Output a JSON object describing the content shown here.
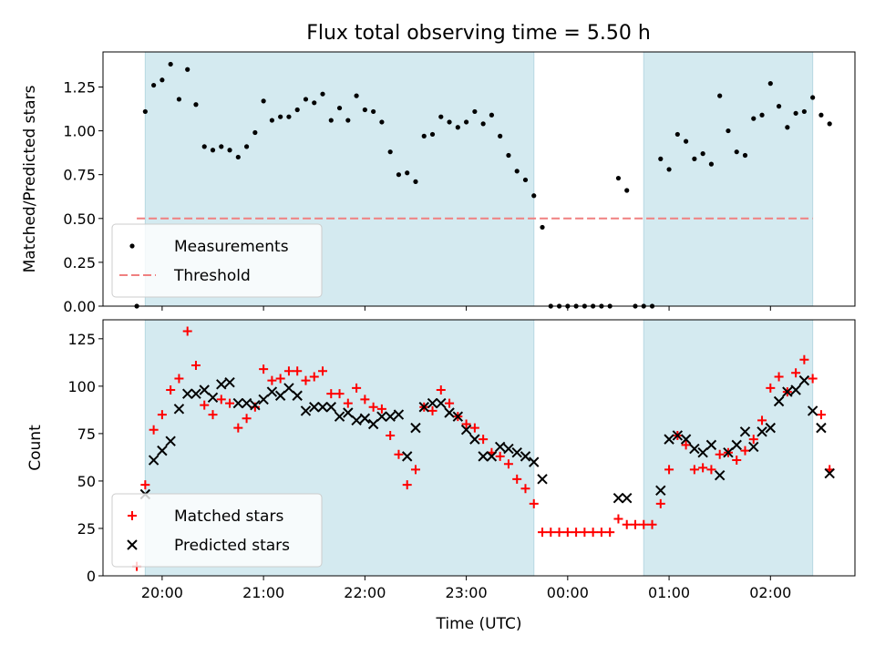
{
  "title": "Flux total observing time = 5.50 h",
  "chart_data": [
    {
      "type": "scatter",
      "ylabel": "Matched/Predicted stars",
      "xlim": [
        "19:25",
        "02:50"
      ],
      "ylim": [
        0,
        1.45
      ],
      "yticks": [
        0.0,
        0.25,
        0.5,
        0.75,
        1.0,
        1.25
      ],
      "ytick_labels": [
        "0.00",
        "0.25",
        "0.50",
        "0.75",
        "1.00",
        "1.25"
      ],
      "shaded_intervals": [
        [
          "19:50",
          "23:40"
        ],
        [
          "00:45",
          "02:25"
        ]
      ],
      "shade_color": "#d4eaf0",
      "legend_position": "lower left",
      "threshold": {
        "name": "Threshold",
        "value": 0.5,
        "x_range": [
          "19:45",
          "02:25"
        ],
        "color": "#f08080",
        "style": "dashed"
      },
      "series": [
        {
          "name": "Measurements",
          "color": "#000000",
          "points": [
            [
              "19:45",
              0.0
            ],
            [
              "19:50",
              1.11
            ],
            [
              "19:55",
              1.26
            ],
            [
              "20:00",
              1.29
            ],
            [
              "20:05",
              1.38
            ],
            [
              "20:10",
              1.18
            ],
            [
              "20:15",
              1.35
            ],
            [
              "20:20",
              1.15
            ],
            [
              "20:25",
              0.91
            ],
            [
              "20:30",
              0.89
            ],
            [
              "20:35",
              0.91
            ],
            [
              "20:40",
              0.89
            ],
            [
              "20:45",
              0.85
            ],
            [
              "20:50",
              0.91
            ],
            [
              "20:55",
              0.99
            ],
            [
              "21:00",
              1.17
            ],
            [
              "21:05",
              1.06
            ],
            [
              "21:10",
              1.08
            ],
            [
              "21:15",
              1.08
            ],
            [
              "21:20",
              1.12
            ],
            [
              "21:25",
              1.18
            ],
            [
              "21:30",
              1.16
            ],
            [
              "21:35",
              1.21
            ],
            [
              "21:40",
              1.06
            ],
            [
              "21:45",
              1.13
            ],
            [
              "21:50",
              1.06
            ],
            [
              "21:55",
              1.2
            ],
            [
              "22:00",
              1.12
            ],
            [
              "22:05",
              1.11
            ],
            [
              "22:10",
              1.05
            ],
            [
              "22:15",
              0.88
            ],
            [
              "22:20",
              0.75
            ],
            [
              "22:25",
              0.76
            ],
            [
              "22:30",
              0.71
            ],
            [
              "22:35",
              0.97
            ],
            [
              "22:40",
              0.98
            ],
            [
              "22:45",
              1.08
            ],
            [
              "22:50",
              1.05
            ],
            [
              "22:55",
              1.02
            ],
            [
              "23:00",
              1.05
            ],
            [
              "23:05",
              1.11
            ],
            [
              "23:10",
              1.04
            ],
            [
              "23:15",
              1.09
            ],
            [
              "23:20",
              0.97
            ],
            [
              "23:25",
              0.86
            ],
            [
              "23:30",
              0.77
            ],
            [
              "23:35",
              0.72
            ],
            [
              "23:40",
              0.63
            ],
            [
              "23:45",
              0.45
            ],
            [
              "23:50",
              0.0
            ],
            [
              "23:55",
              0.0
            ],
            [
              "00:00",
              0.0
            ],
            [
              "00:05",
              0.0
            ],
            [
              "00:10",
              0.0
            ],
            [
              "00:15",
              0.0
            ],
            [
              "00:20",
              0.0
            ],
            [
              "00:25",
              0.0
            ],
            [
              "00:30",
              0.73
            ],
            [
              "00:35",
              0.66
            ],
            [
              "00:40",
              0.0
            ],
            [
              "00:45",
              0.0
            ],
            [
              "00:50",
              0.0
            ],
            [
              "00:55",
              0.84
            ],
            [
              "01:00",
              0.78
            ],
            [
              "01:05",
              0.98
            ],
            [
              "01:10",
              0.94
            ],
            [
              "01:15",
              0.84
            ],
            [
              "01:20",
              0.87
            ],
            [
              "01:25",
              0.81
            ],
            [
              "01:30",
              1.2
            ],
            [
              "01:35",
              1.0
            ],
            [
              "01:40",
              0.88
            ],
            [
              "01:45",
              0.86
            ],
            [
              "01:50",
              1.07
            ],
            [
              "01:55",
              1.09
            ],
            [
              "02:00",
              1.27
            ],
            [
              "02:05",
              1.14
            ],
            [
              "02:10",
              1.02
            ],
            [
              "02:15",
              1.1
            ],
            [
              "02:20",
              1.11
            ],
            [
              "02:25",
              1.19
            ],
            [
              "02:30",
              1.09
            ],
            [
              "02:35",
              1.04
            ]
          ]
        }
      ]
    },
    {
      "type": "scatter",
      "xlabel": "Time (UTC)",
      "ylabel": "Count",
      "xlim": [
        "19:25",
        "02:50"
      ],
      "xticks": [
        "20:00",
        "21:00",
        "22:00",
        "23:00",
        "00:00",
        "01:00",
        "02:00"
      ],
      "xtick_labels": [
        "20:00",
        "21:00",
        "22:00",
        "23:00",
        "00:00",
        "01:00",
        "02:00"
      ],
      "ylim": [
        0,
        135
      ],
      "yticks": [
        0,
        25,
        50,
        75,
        100,
        125
      ],
      "ytick_labels": [
        "0",
        "25",
        "50",
        "75",
        "100",
        "125"
      ],
      "shaded_intervals": [
        [
          "19:50",
          "23:40"
        ],
        [
          "00:45",
          "02:25"
        ]
      ],
      "shade_color": "#d4eaf0",
      "legend_position": "lower left",
      "series": [
        {
          "name": "Matched stars",
          "color": "#ff0000",
          "marker": "plus",
          "points": [
            [
              "19:45",
              5
            ],
            [
              "19:50",
              48
            ],
            [
              "19:55",
              77
            ],
            [
              "20:00",
              85
            ],
            [
              "20:05",
              98
            ],
            [
              "20:10",
              104
            ],
            [
              "20:15",
              129
            ],
            [
              "20:20",
              111
            ],
            [
              "20:25",
              90
            ],
            [
              "20:30",
              85
            ],
            [
              "20:35",
              93
            ],
            [
              "20:40",
              91
            ],
            [
              "20:45",
              78
            ],
            [
              "20:50",
              83
            ],
            [
              "20:55",
              89
            ],
            [
              "21:00",
              109
            ],
            [
              "21:05",
              103
            ],
            [
              "21:10",
              104
            ],
            [
              "21:15",
              108
            ],
            [
              "21:20",
              108
            ],
            [
              "21:25",
              103
            ],
            [
              "21:30",
              105
            ],
            [
              "21:35",
              108
            ],
            [
              "21:40",
              96
            ],
            [
              "21:45",
              96
            ],
            [
              "21:50",
              91
            ],
            [
              "21:55",
              99
            ],
            [
              "22:00",
              93
            ],
            [
              "22:05",
              89
            ],
            [
              "22:10",
              88
            ],
            [
              "22:15",
              74
            ],
            [
              "22:20",
              64
            ],
            [
              "22:25",
              48
            ],
            [
              "22:30",
              56
            ],
            [
              "22:35",
              89
            ],
            [
              "22:40",
              87
            ],
            [
              "22:45",
              98
            ],
            [
              "22:50",
              91
            ],
            [
              "22:55",
              84
            ],
            [
              "23:00",
              80
            ],
            [
              "23:05",
              78
            ],
            [
              "23:10",
              72
            ],
            [
              "23:15",
              65
            ],
            [
              "23:20",
              63
            ],
            [
              "23:25",
              59
            ],
            [
              "23:30",
              51
            ],
            [
              "23:35",
              46
            ],
            [
              "23:40",
              38
            ],
            [
              "23:45",
              23
            ],
            [
              "23:50",
              23
            ],
            [
              "23:55",
              23
            ],
            [
              "00:00",
              23
            ],
            [
              "00:05",
              23
            ],
            [
              "00:10",
              23
            ],
            [
              "00:15",
              23
            ],
            [
              "00:20",
              23
            ],
            [
              "00:25",
              23
            ],
            [
              "00:30",
              30
            ],
            [
              "00:35",
              27
            ],
            [
              "00:40",
              27
            ],
            [
              "00:45",
              27
            ],
            [
              "00:50",
              27
            ],
            [
              "00:55",
              38
            ],
            [
              "01:00",
              56
            ],
            [
              "01:05",
              74
            ],
            [
              "01:10",
              69
            ],
            [
              "01:15",
              56
            ],
            [
              "01:20",
              57
            ],
            [
              "01:25",
              56
            ],
            [
              "01:30",
              64
            ],
            [
              "01:35",
              65
            ],
            [
              "01:40",
              61
            ],
            [
              "01:45",
              66
            ],
            [
              "01:50",
              72
            ],
            [
              "01:55",
              82
            ],
            [
              "02:00",
              99
            ],
            [
              "02:05",
              105
            ],
            [
              "02:10",
              97
            ],
            [
              "02:15",
              107
            ],
            [
              "02:20",
              114
            ],
            [
              "02:25",
              104
            ],
            [
              "02:30",
              85
            ],
            [
              "02:35",
              56
            ]
          ]
        },
        {
          "name": "Predicted stars",
          "color": "#000000",
          "marker": "x",
          "points": [
            [
              "19:50",
              43
            ],
            [
              "19:55",
              61
            ],
            [
              "20:00",
              66
            ],
            [
              "20:05",
              71
            ],
            [
              "20:10",
              88
            ],
            [
              "20:15",
              96
            ],
            [
              "20:20",
              96
            ],
            [
              "20:25",
              98
            ],
            [
              "20:30",
              94
            ],
            [
              "20:35",
              101
            ],
            [
              "20:40",
              102
            ],
            [
              "20:45",
              91
            ],
            [
              "20:50",
              91
            ],
            [
              "20:55",
              90
            ],
            [
              "21:00",
              93
            ],
            [
              "21:05",
              97
            ],
            [
              "21:10",
              95
            ],
            [
              "21:15",
              99
            ],
            [
              "21:20",
              95
            ],
            [
              "21:25",
              87
            ],
            [
              "21:30",
              89
            ],
            [
              "21:35",
              89
            ],
            [
              "21:40",
              89
            ],
            [
              "21:45",
              84
            ],
            [
              "21:50",
              86
            ],
            [
              "21:55",
              82
            ],
            [
              "22:00",
              83
            ],
            [
              "22:05",
              80
            ],
            [
              "22:10",
              84
            ],
            [
              "22:15",
              84
            ],
            [
              "22:20",
              85
            ],
            [
              "22:25",
              63
            ],
            [
              "22:30",
              78
            ],
            [
              "22:35",
              89
            ],
            [
              "22:40",
              91
            ],
            [
              "22:45",
              91
            ],
            [
              "22:50",
              86
            ],
            [
              "22:55",
              84
            ],
            [
              "23:00",
              77
            ],
            [
              "23:05",
              72
            ],
            [
              "23:10",
              63
            ],
            [
              "23:15",
              63
            ],
            [
              "23:20",
              68
            ],
            [
              "23:25",
              67
            ],
            [
              "23:30",
              65
            ],
            [
              "23:35",
              63
            ],
            [
              "23:40",
              60
            ],
            [
              "23:45",
              51
            ],
            [
              "00:30",
              41
            ],
            [
              "00:35",
              41
            ],
            [
              "00:55",
              45
            ],
            [
              "01:00",
              72
            ],
            [
              "01:05",
              74
            ],
            [
              "01:10",
              72
            ],
            [
              "01:15",
              67
            ],
            [
              "01:20",
              65
            ],
            [
              "01:25",
              69
            ],
            [
              "01:30",
              53
            ],
            [
              "01:35",
              65
            ],
            [
              "01:40",
              69
            ],
            [
              "01:45",
              76
            ],
            [
              "01:50",
              68
            ],
            [
              "01:55",
              76
            ],
            [
              "02:00",
              78
            ],
            [
              "02:05",
              92
            ],
            [
              "02:10",
              97
            ],
            [
              "02:15",
              98
            ],
            [
              "02:20",
              103
            ],
            [
              "02:25",
              87
            ],
            [
              "02:30",
              78
            ],
            [
              "02:35",
              54
            ]
          ]
        }
      ]
    }
  ]
}
